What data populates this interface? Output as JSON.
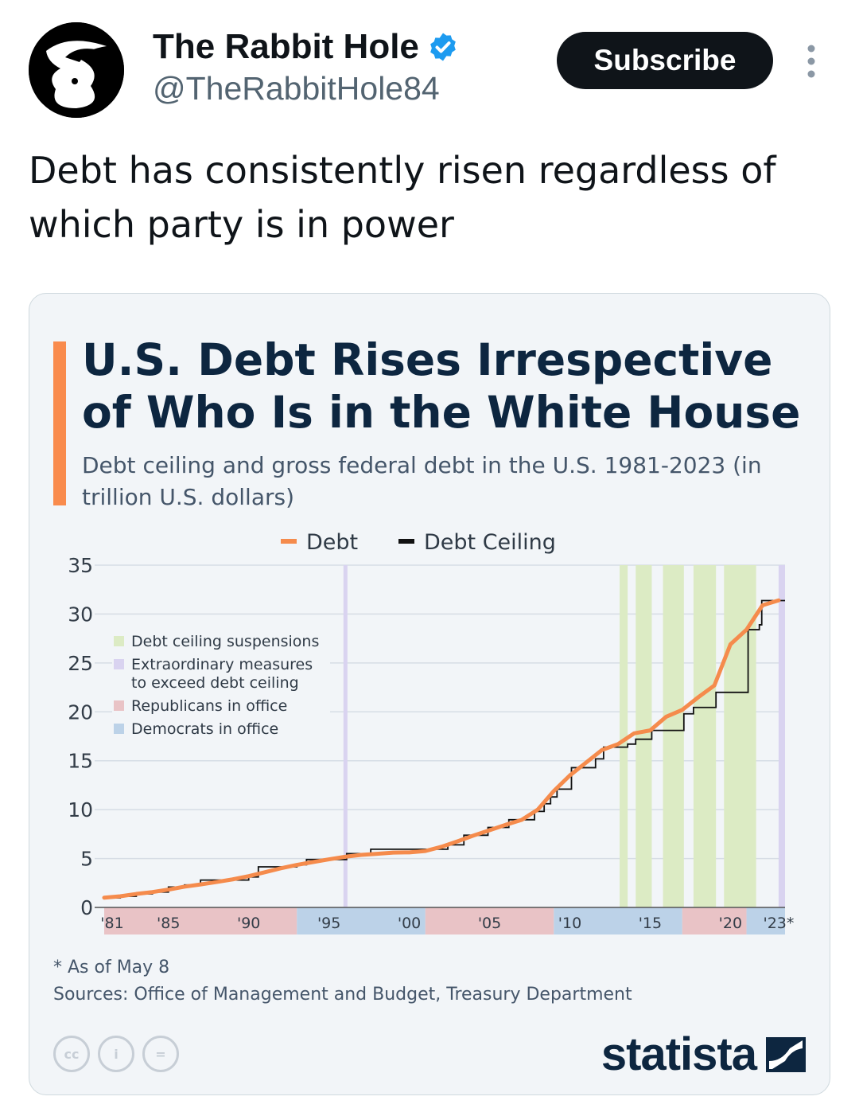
{
  "post": {
    "display_name": "The Rabbit Hole",
    "handle": "@TheRabbitHole84",
    "subscribe_label": "Subscribe",
    "text": "Debt has consistently risen regardless of which party is in power"
  },
  "colors": {
    "debt": "#f58b4c",
    "ceiling": "#111111",
    "suspension": "#dcebc4",
    "extraordinary": "#d9d3f0",
    "republican": "#e9c3c6",
    "democrat": "#bcd2e8",
    "grid": "#d6dde5",
    "brand": "#0d2640"
  },
  "chart_card": {
    "note": "* As of May 8",
    "sources": "Sources: Office of Management and Budget, Treasury Department",
    "brand": "statista",
    "cc_icons": [
      "cc",
      "i",
      "="
    ]
  },
  "chart_data": {
    "type": "line",
    "title": "U.S. Debt Rises Irrespective of Who Is in the White House",
    "subtitle": "Debt ceiling and gross federal debt in the U.S. 1981-2023 (in trillion U.S. dollars)",
    "ylim": [
      0,
      35
    ],
    "y_ticks": [
      0,
      5,
      10,
      15,
      20,
      25,
      30,
      35
    ],
    "x_range": [
      1981,
      2023.4
    ],
    "x_ticks": [
      {
        "year": 1981,
        "label": "'81"
      },
      {
        "year": 1985,
        "label": "'85"
      },
      {
        "year": 1990,
        "label": "'90"
      },
      {
        "year": 1995,
        "label": "'95"
      },
      {
        "year": 2000,
        "label": "'00"
      },
      {
        "year": 2005,
        "label": "'05"
      },
      {
        "year": 2010,
        "label": "'10"
      },
      {
        "year": 2015,
        "label": "'15"
      },
      {
        "year": 2020,
        "label": "'20"
      },
      {
        "year": 2023,
        "label": "'23*"
      }
    ],
    "grid": true,
    "legend_top": [
      {
        "name": "Debt",
        "color_key": "debt"
      },
      {
        "name": "Debt Ceiling",
        "color_key": "ceiling"
      }
    ],
    "legend_inset": [
      {
        "name": "Debt ceiling suspensions",
        "color_key": "suspension"
      },
      {
        "name": "Extraordinary measures to exceed debt ceiling",
        "color_key": "extraordinary"
      },
      {
        "name": "Republicans in office",
        "color_key": "republican"
      },
      {
        "name": "Democrats in office",
        "color_key": "democrat"
      }
    ],
    "series": [
      {
        "name": "Debt",
        "points": [
          [
            1981,
            1.0
          ],
          [
            1982,
            1.14
          ],
          [
            1983,
            1.38
          ],
          [
            1984,
            1.57
          ],
          [
            1985,
            1.82
          ],
          [
            1986,
            2.12
          ],
          [
            1987,
            2.35
          ],
          [
            1988,
            2.6
          ],
          [
            1989,
            2.87
          ],
          [
            1990,
            3.2
          ],
          [
            1991,
            3.6
          ],
          [
            1992,
            4.0
          ],
          [
            1993,
            4.35
          ],
          [
            1994,
            4.64
          ],
          [
            1995,
            4.92
          ],
          [
            1996,
            5.18
          ],
          [
            1997,
            5.37
          ],
          [
            1998,
            5.48
          ],
          [
            1999,
            5.61
          ],
          [
            2000,
            5.63
          ],
          [
            2001,
            5.77
          ],
          [
            2002,
            6.2
          ],
          [
            2003,
            6.76
          ],
          [
            2004,
            7.35
          ],
          [
            2005,
            7.9
          ],
          [
            2006,
            8.45
          ],
          [
            2007,
            8.95
          ],
          [
            2008,
            10.0
          ],
          [
            2009,
            11.9
          ],
          [
            2010,
            13.5
          ],
          [
            2011,
            14.8
          ],
          [
            2012,
            16.1
          ],
          [
            2013,
            16.7
          ],
          [
            2014,
            17.8
          ],
          [
            2015,
            18.1
          ],
          [
            2016,
            19.5
          ],
          [
            2017,
            20.2
          ],
          [
            2018,
            21.5
          ],
          [
            2019,
            22.7
          ],
          [
            2020,
            26.9
          ],
          [
            2021,
            28.4
          ],
          [
            2022,
            30.9
          ],
          [
            2023,
            31.4
          ]
        ]
      },
      {
        "name": "Debt Ceiling",
        "points": [
          [
            1981,
            0.98
          ],
          [
            1982,
            1.14
          ],
          [
            1983,
            1.39
          ],
          [
            1984,
            1.57
          ],
          [
            1985,
            2.08
          ],
          [
            1986,
            2.3
          ],
          [
            1987,
            2.8
          ],
          [
            1990,
            3.12
          ],
          [
            1990.6,
            4.15
          ],
          [
            1993,
            4.37
          ],
          [
            1993.6,
            4.9
          ],
          [
            1996.1,
            5.5
          ],
          [
            1997.6,
            5.95
          ],
          [
            2002.4,
            6.4
          ],
          [
            2003.4,
            7.38
          ],
          [
            2004.9,
            8.18
          ],
          [
            2006.2,
            8.97
          ],
          [
            2007.8,
            9.82
          ],
          [
            2008.4,
            10.6
          ],
          [
            2008.8,
            11.3
          ],
          [
            2009.2,
            12.1
          ],
          [
            2010.1,
            14.29
          ],
          [
            2011.6,
            15.19
          ],
          [
            2012.1,
            16.39
          ],
          [
            2013.6,
            16.7
          ],
          [
            2014.1,
            17.2
          ],
          [
            2015.1,
            18.1
          ],
          [
            2017.1,
            19.8
          ],
          [
            2017.7,
            20.45
          ],
          [
            2019.1,
            21.99
          ],
          [
            2021.1,
            28.4
          ],
          [
            2021.8,
            28.9
          ],
          [
            2021.95,
            31.38
          ],
          [
            2023.4,
            31.38
          ]
        ]
      }
    ],
    "suspensions": [
      [
        2013.1,
        2013.6
      ],
      [
        2014.1,
        2015.1
      ],
      [
        2015.8,
        2017.1
      ],
      [
        2017.7,
        2019.1
      ],
      [
        2019.6,
        2021.6
      ]
    ],
    "extraordinary_measures": [
      [
        1995.9,
        1996.1
      ],
      [
        2023.0,
        2023.4
      ]
    ],
    "party_bands": [
      {
        "party": "republican",
        "from": 1981,
        "to": 1993
      },
      {
        "party": "democrat",
        "from": 1993,
        "to": 2001
      },
      {
        "party": "republican",
        "from": 2001,
        "to": 2009
      },
      {
        "party": "democrat",
        "from": 2009,
        "to": 2017
      },
      {
        "party": "republican",
        "from": 2017,
        "to": 2021
      },
      {
        "party": "democrat",
        "from": 2021,
        "to": 2023.4
      }
    ]
  }
}
